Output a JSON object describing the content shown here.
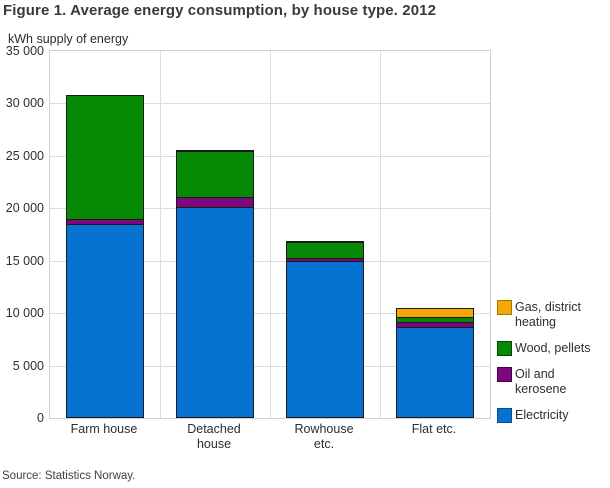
{
  "title": "Figure 1. Average energy consumption, by house type. 2012",
  "y_axis_title": "kWh supply of energy",
  "source": "Source: Statistics Norway.",
  "colors": {
    "electricity": "#0673d2",
    "oil_kerosene": "#7d077d",
    "wood_pellets": "#068a06",
    "gas_district_heating": "#f5a805",
    "bar_outline": "#1a1a1a",
    "gridline": "#dcdcdc",
    "text": "#2e2e2e",
    "title_text": "#3a3a3a"
  },
  "chart_data": {
    "type": "bar",
    "stacked": true,
    "title": "Figure 1. Average energy consumption, by house type. 2012",
    "xlabel": "",
    "ylabel": "kWh supply of energy",
    "ylim": [
      0,
      35000
    ],
    "grid": true,
    "legend_position": "right",
    "yticks": [
      0,
      5000,
      10000,
      15000,
      20000,
      25000,
      30000,
      35000
    ],
    "ytick_labels": [
      "0",
      "5 000",
      "10 000",
      "15 000",
      "20 000",
      "25 000",
      "30 000",
      "35 000"
    ],
    "categories": [
      "Farm house",
      "Detached house",
      "Rowhouse etc.",
      "Flat etc."
    ],
    "category_display_labels": [
      "Farm house",
      "Detached\nhouse",
      "Rowhouse\netc.",
      "Flat etc."
    ],
    "series": [
      {
        "name": "Electricity",
        "color": "#0673d2",
        "swatch_border": "#0a4f8c",
        "values": [
          18500,
          20100,
          14950,
          8700
        ]
      },
      {
        "name": "Oil and kerosene",
        "color": "#7d077d",
        "swatch_border": "#44043f",
        "values": [
          550,
          1050,
          350,
          600
        ]
      },
      {
        "name": "Wood, pellets",
        "color": "#068a06",
        "swatch_border": "#04470a",
        "values": [
          11950,
          4450,
          1650,
          600
        ]
      },
      {
        "name": "Gas, district heating",
        "color": "#f5a805",
        "swatch_border": "#a87407",
        "values": [
          0,
          200,
          100,
          1000
        ]
      }
    ],
    "totals": [
      31000,
      25800,
      17050,
      10900
    ],
    "legend_order": [
      "Gas, district heating",
      "Wood, pellets",
      "Oil and kerosene",
      "Electricity"
    ]
  }
}
